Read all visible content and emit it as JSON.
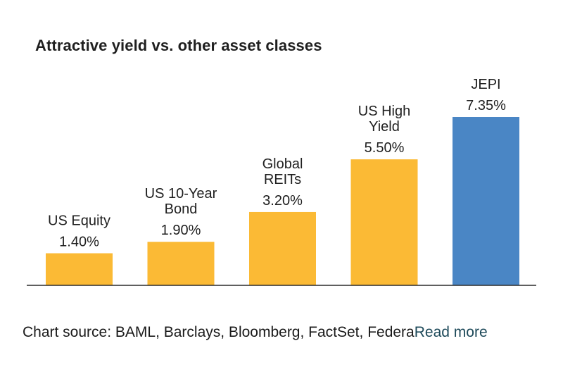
{
  "chart_data": {
    "type": "bar",
    "title": "Attractive yield vs. other asset classes",
    "categories": [
      [
        "US Equity"
      ],
      [
        "US 10-Year",
        "Bond"
      ],
      [
        "Global",
        "REITs"
      ],
      [
        "US High",
        "Yield"
      ],
      [
        "JEPI"
      ]
    ],
    "values": [
      1.4,
      1.9,
      3.2,
      5.5,
      7.35
    ],
    "value_labels": [
      "1.40%",
      "1.90%",
      "3.20%",
      "5.50%",
      "7.35%"
    ],
    "colors": [
      "#FBBA35",
      "#FBBA35",
      "#FBBA35",
      "#FBBA35",
      "#4A86C5"
    ],
    "ylim": [
      0,
      7.35
    ],
    "xlabel": "",
    "ylabel": "",
    "grid": false
  },
  "caption": {
    "source_text": "Chart source: BAML, Barclays, Bloomberg, FactSet, Federa",
    "read_more": "Read more"
  }
}
